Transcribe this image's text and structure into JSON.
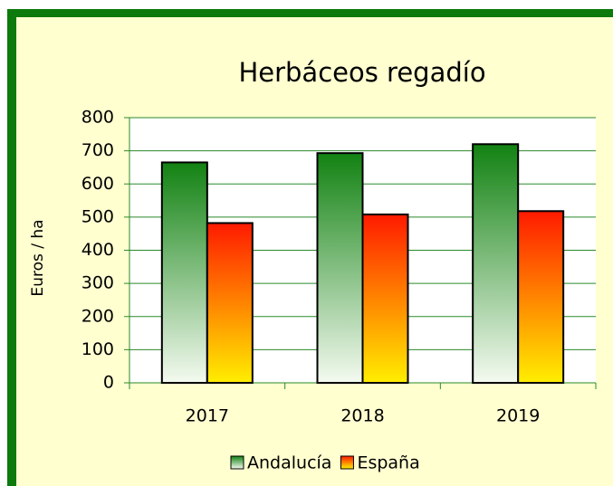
{
  "chart_data": {
    "type": "bar",
    "title": "Herbáceos regadío",
    "y_label": "Euros / ha",
    "categories": [
      "2017",
      "2018",
      "2019"
    ],
    "series": [
      {
        "name": "Andalucía",
        "color": "#128212",
        "values": [
          665,
          693,
          720
        ]
      },
      {
        "name": "España",
        "color": "#ff1a00",
        "values": [
          482,
          508,
          518
        ]
      }
    ],
    "ylim": [
      0,
      800
    ],
    "yticks": [
      0,
      100,
      200,
      300,
      400,
      500,
      600,
      700,
      800
    ],
    "grid": true,
    "legend": "bottom"
  }
}
